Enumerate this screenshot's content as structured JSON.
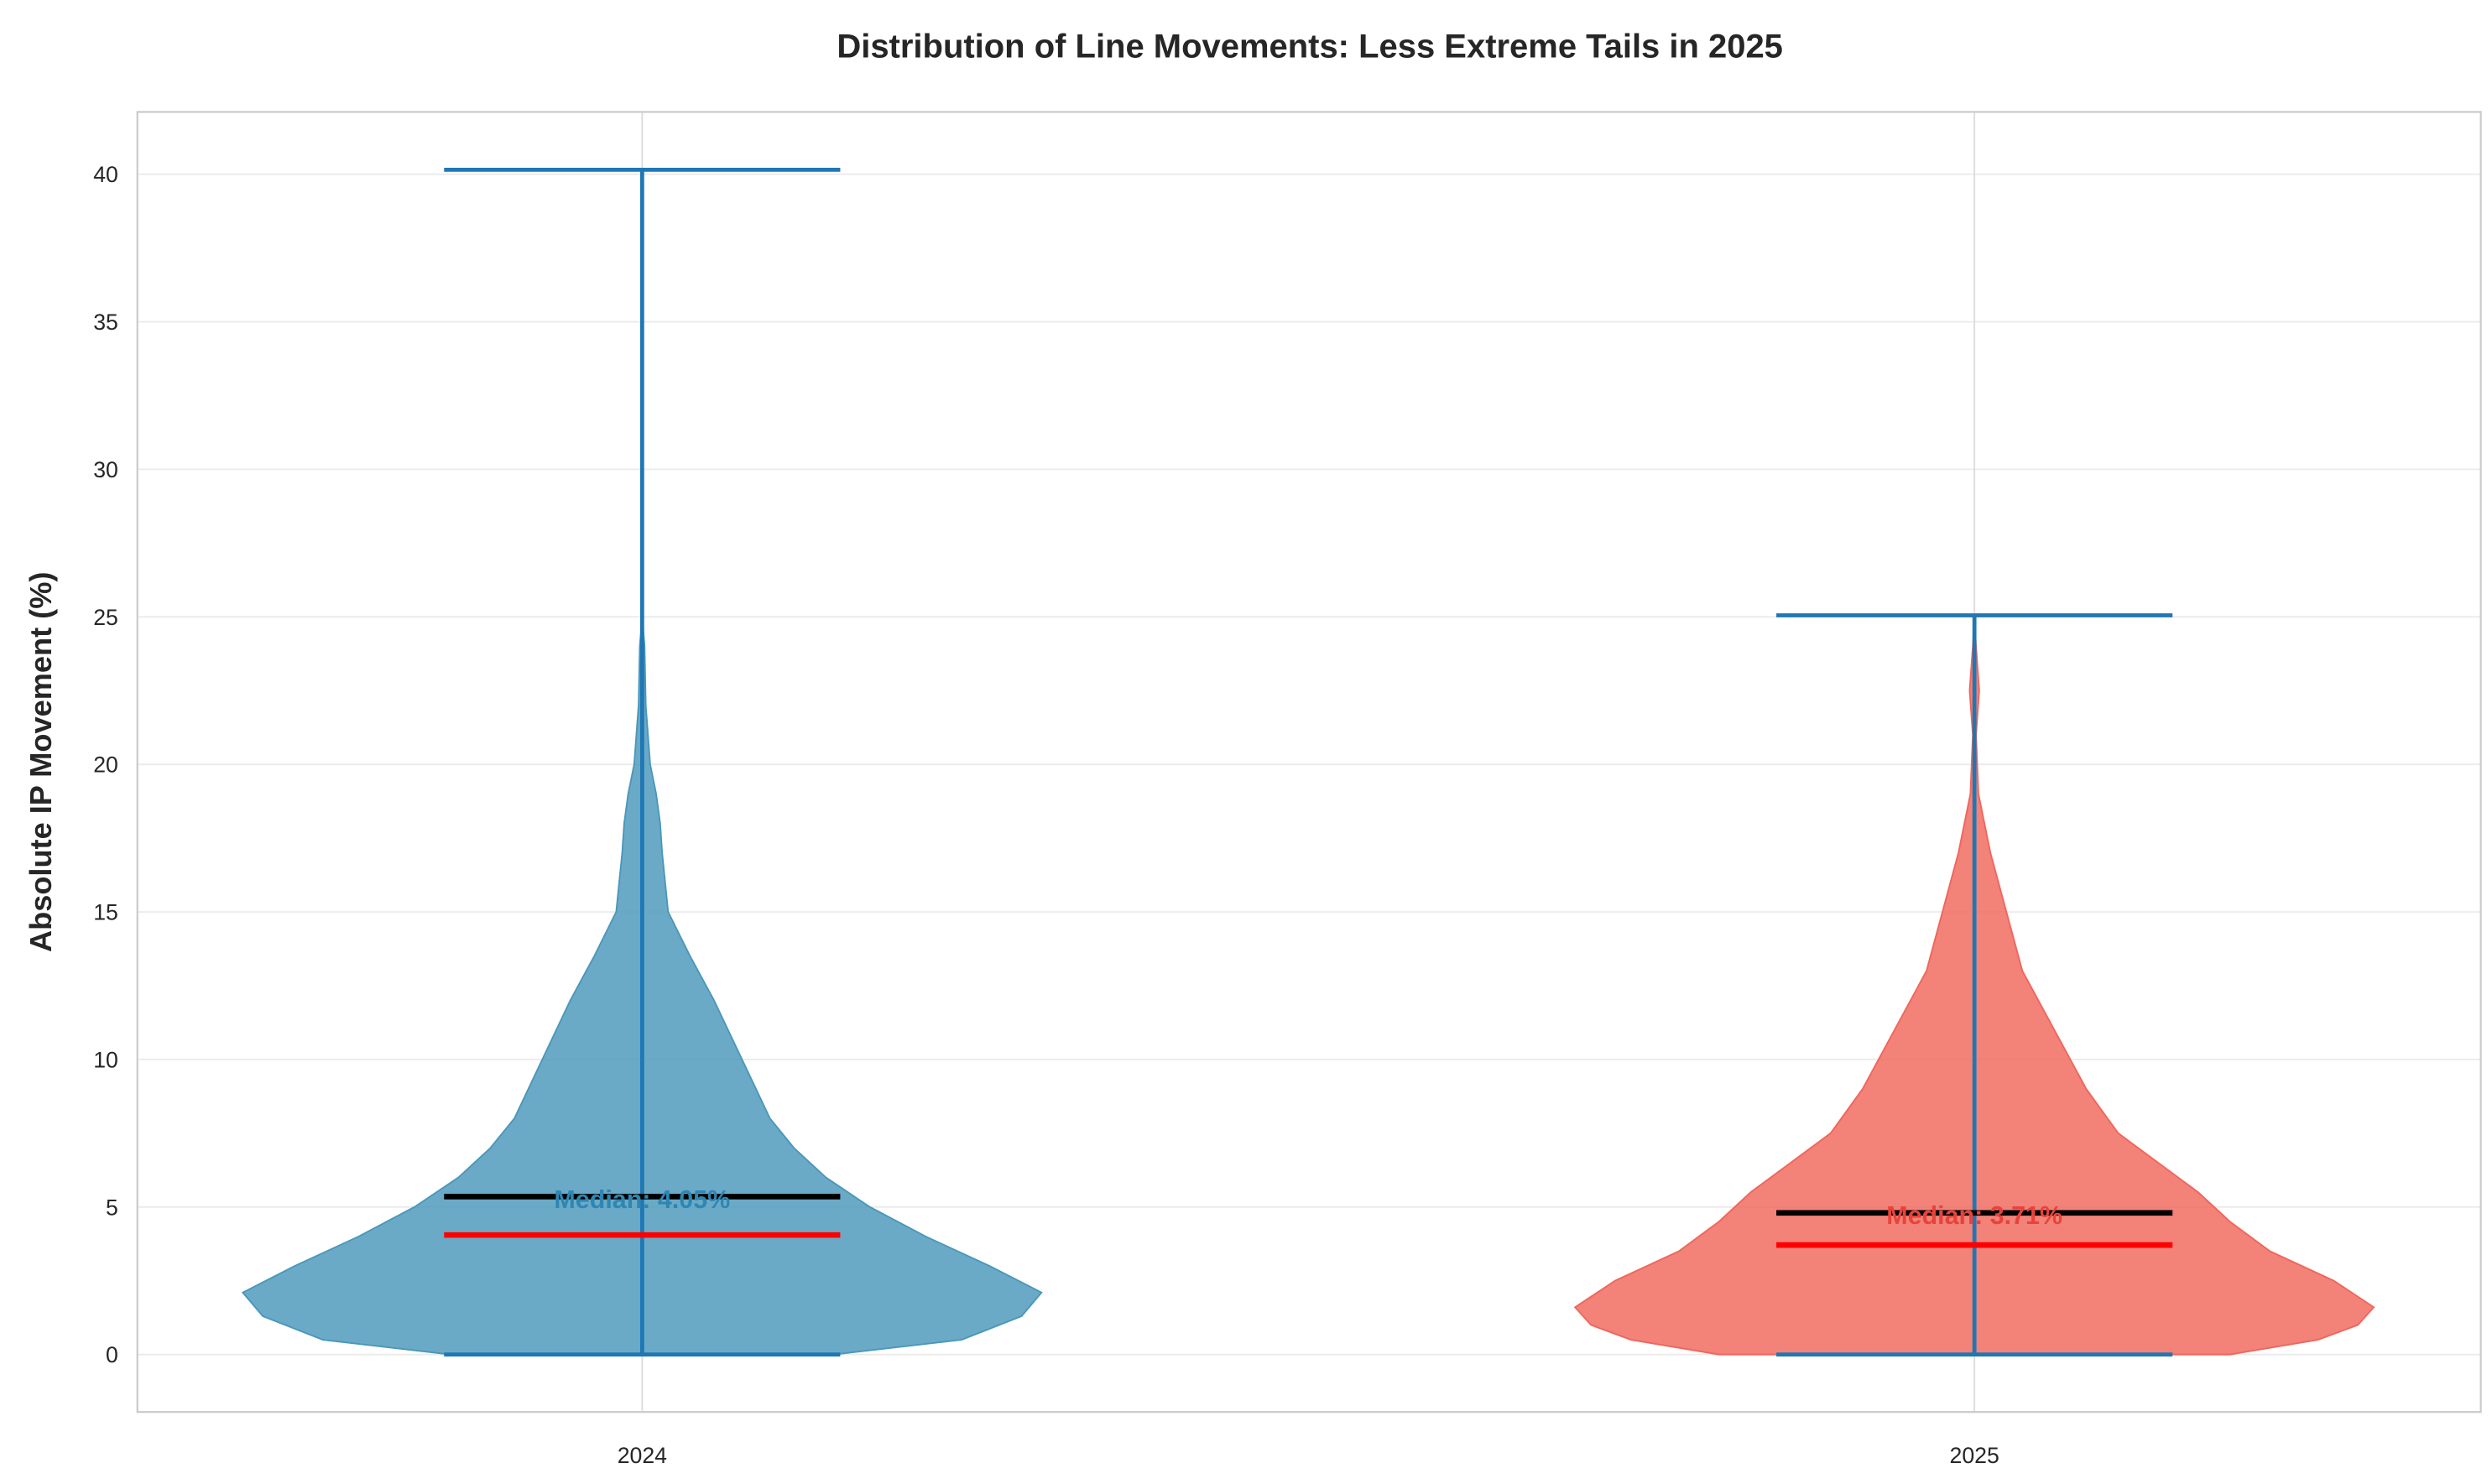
{
  "chart_data": {
    "type": "violin",
    "title": "Distribution of Line Movements: Less Extreme Tails in 2025",
    "xlabel": "",
    "ylabel": "Absolute IP Movement (%)",
    "categories": [
      "2024",
      "2025"
    ],
    "ylim": [
      -2.1,
      42.1
    ],
    "yticks": [
      0,
      5,
      10,
      15,
      20,
      25,
      30,
      35,
      40
    ],
    "grid": true,
    "series": [
      {
        "category": "2024",
        "color": "#4a97bb",
        "min": 0,
        "max": 40.15,
        "mean": 5.35,
        "median": 4.05,
        "median_label": "Median: 4.05%",
        "label_color": "#2e86b3",
        "density_profile": [
          [
            0,
            0.48
          ],
          [
            0.5,
            0.8
          ],
          [
            1.3,
            0.95
          ],
          [
            2.1,
            1.0
          ],
          [
            3,
            0.87
          ],
          [
            4,
            0.71
          ],
          [
            5,
            0.57
          ],
          [
            6,
            0.46
          ],
          [
            7,
            0.38
          ],
          [
            8,
            0.32
          ],
          [
            10,
            0.25
          ],
          [
            12,
            0.18
          ],
          [
            13.5,
            0.12
          ],
          [
            15,
            0.065
          ],
          [
            17,
            0.05
          ],
          [
            18,
            0.045
          ],
          [
            19,
            0.035
          ],
          [
            20,
            0.02
          ],
          [
            22,
            0.009
          ],
          [
            24,
            0.006
          ],
          [
            25,
            0
          ]
        ]
      },
      {
        "category": "2025",
        "color": "#f0665c",
        "min": 0,
        "max": 25.05,
        "mean": 4.8,
        "median": 3.71,
        "median_label": "Median: 3.71%",
        "label_color": "#e8433a",
        "density_profile": [
          [
            0,
            0.64
          ],
          [
            0.5,
            0.86
          ],
          [
            1,
            0.96
          ],
          [
            1.6,
            1.0
          ],
          [
            2.5,
            0.9
          ],
          [
            3.5,
            0.74
          ],
          [
            4.5,
            0.64
          ],
          [
            5.5,
            0.56
          ],
          [
            6.5,
            0.46
          ],
          [
            7.5,
            0.36
          ],
          [
            9,
            0.28
          ],
          [
            11,
            0.2
          ],
          [
            13,
            0.12
          ],
          [
            15,
            0.08
          ],
          [
            17,
            0.04
          ],
          [
            19,
            0.01
          ],
          [
            21,
            0.004
          ],
          [
            22.5,
            0.012
          ],
          [
            24,
            0.004
          ],
          [
            25,
            0
          ]
        ]
      }
    ],
    "extrema_color": "#1f77b4",
    "mean_line_color": "#000000",
    "median_line_color": "#ff0000"
  }
}
